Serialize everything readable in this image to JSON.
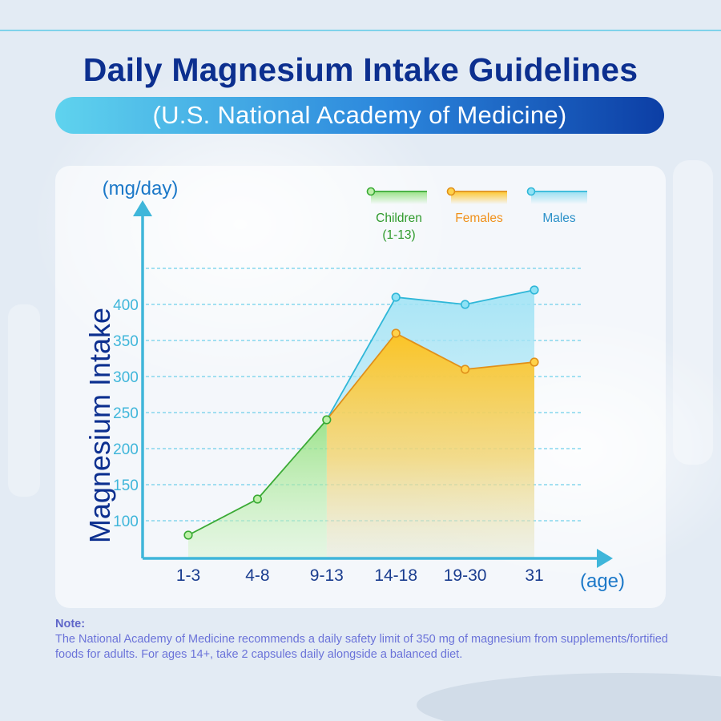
{
  "header": {
    "title": "Daily Magnesium Intake Guidelines",
    "subtitle": "(U.S. National Academy of Medicine)"
  },
  "chart_data": {
    "type": "area",
    "y_unit": "(mg/day)",
    "ylabel": "Magnesium Intake",
    "xlabel": "(age)",
    "categories": [
      "1-3",
      "4-8",
      "9-13",
      "14-18",
      "19-30",
      "31"
    ],
    "y_ticks": [
      100,
      150,
      200,
      250,
      300,
      350,
      400
    ],
    "ylim": [
      50,
      450
    ],
    "grid": true,
    "legend_position": "top-right",
    "series": [
      {
        "name": "Children (1-13)",
        "legend_lines": [
          "Children",
          "(1-13)"
        ],
        "color": "#3aaa35",
        "fill": "#8fe07a",
        "values": [
          80,
          130,
          240,
          null,
          null,
          null
        ]
      },
      {
        "name": "Females",
        "legend_lines": [
          "Females"
        ],
        "color": "#e0901a",
        "fill": "#ffc21a",
        "values": [
          null,
          null,
          240,
          360,
          310,
          320
        ]
      },
      {
        "name": "Males",
        "legend_lines": [
          "Males"
        ],
        "color": "#2fb7d8",
        "fill": "#8fdcf0",
        "values": [
          null,
          null,
          240,
          410,
          400,
          420
        ]
      }
    ]
  },
  "note": {
    "label": "Note:",
    "text": "The National Academy of Medicine recommends a daily safety limit of 350 mg of magnesium from supplements/fortified foods for adults. For ages 14+, take 2 capsules daily alongside a balanced diet."
  }
}
